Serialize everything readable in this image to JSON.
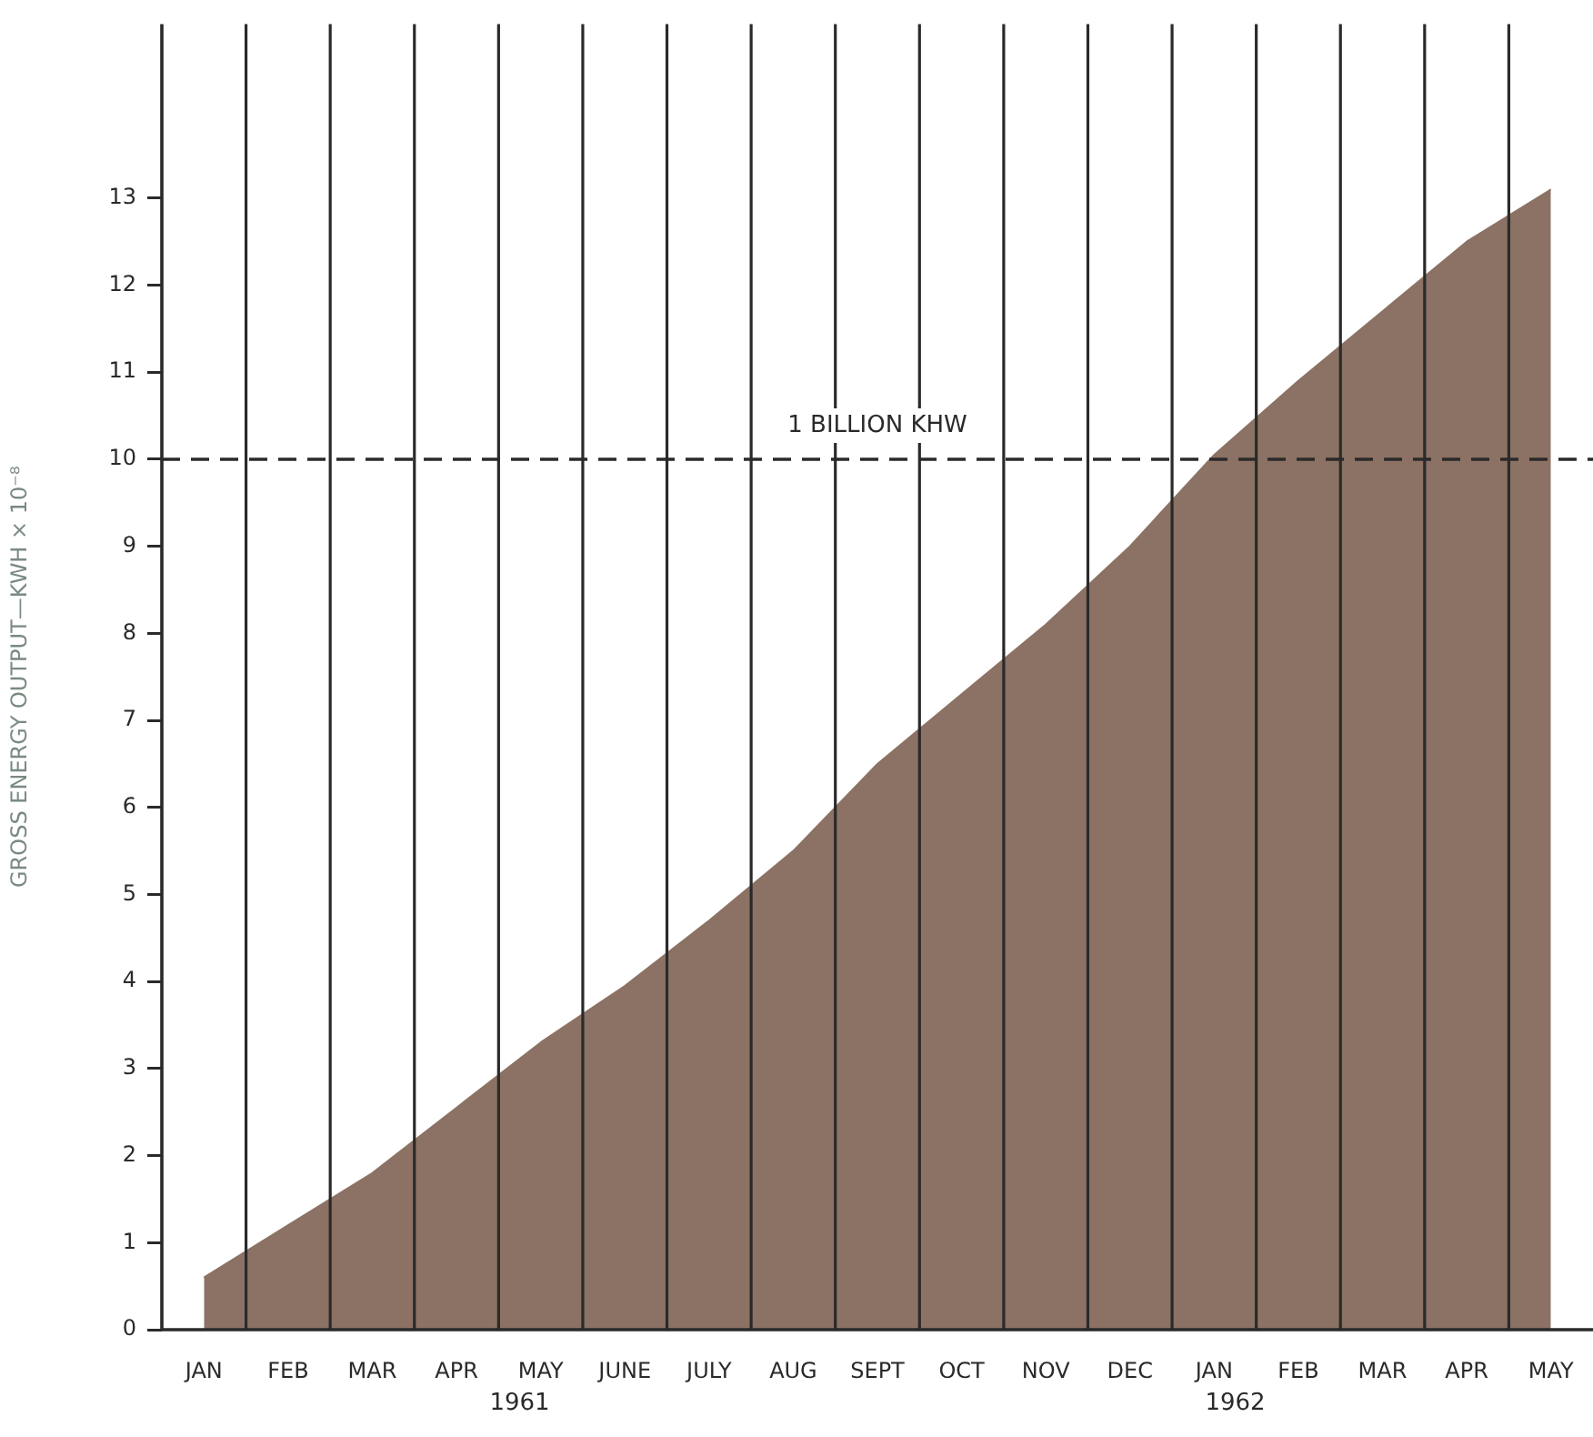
{
  "chart_data": {
    "type": "area",
    "ylabel": "GROSS ENERGY OUTPUT—KWH × 10⁻⁸",
    "categories": [
      "JAN",
      "FEB",
      "MAR",
      "APR",
      "MAY",
      "JUNE",
      "JULY",
      "AUG",
      "SEPT",
      "OCT",
      "NOV",
      "DEC",
      "JAN",
      "FEB",
      "MAR",
      "APR",
      "MAY"
    ],
    "series": [
      {
        "color": "#8c7264",
        "values": [
          0.6,
          1.2,
          1.8,
          2.55,
          3.3,
          3.95,
          4.7,
          5.5,
          6.5,
          7.3,
          8.1,
          9.0,
          10.05,
          10.9,
          11.7,
          12.5,
          13.1
        ]
      }
    ],
    "ylim": [
      0,
      15
    ],
    "yticks": [
      0,
      1,
      2,
      3,
      4,
      5,
      6,
      7,
      8,
      9,
      10,
      11,
      12,
      13
    ],
    "grid": "x",
    "legend": false,
    "marker": "none",
    "ref_lines": [
      {
        "axis": "y",
        "value": 10,
        "label": "1 BILLION KHW",
        "color": "#2a2a2a",
        "line_style": "dashed"
      }
    ],
    "annotations": [
      "1961",
      "1962"
    ]
  }
}
